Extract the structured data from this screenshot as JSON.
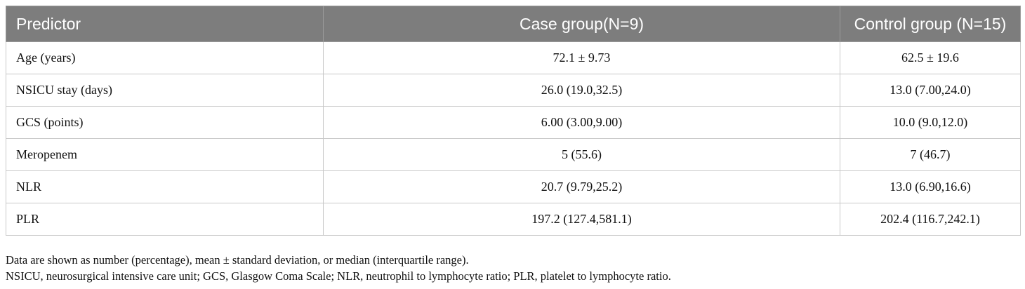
{
  "table": {
    "headers": [
      "Predictor",
      "Case group(N=9)",
      "Control group (N=15)"
    ],
    "rows": [
      [
        "Age (years)",
        "72.1 ± 9.73",
        "62.5 ± 19.6"
      ],
      [
        "NSICU stay (days)",
        "26.0 (19.0,32.5)",
        "13.0 (7.00,24.0)"
      ],
      [
        "GCS (points)",
        "6.00 (3.00,9.00)",
        "10.0 (9.0,12.0)"
      ],
      [
        "Meropenem",
        "5 (55.6)",
        "7 (46.7)"
      ],
      [
        "NLR",
        "20.7 (9.79,25.2)",
        "13.0 (6.90,16.6)"
      ],
      [
        "PLR",
        "197.2 (127.4,581.1)",
        "202.4 (116.7,242.1)"
      ]
    ]
  },
  "footnotes": [
    "Data are shown as number (percentage), mean ± standard deviation, or median (interquartile range).",
    "NSICU, neurosurgical intensive care unit; GCS, Glasgow Coma Scale; NLR, neutrophil to lymphocyte ratio; PLR, platelet to lymphocyte ratio."
  ]
}
